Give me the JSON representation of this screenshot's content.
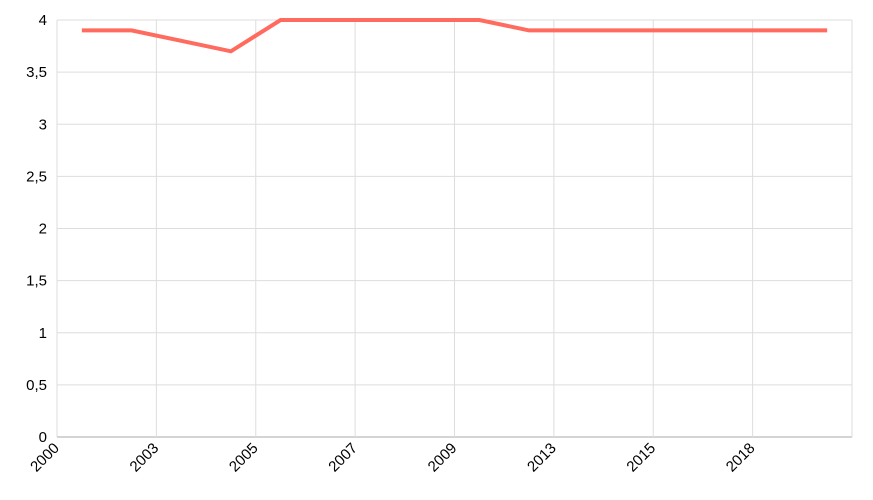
{
  "chart_data": {
    "type": "line",
    "title": "",
    "xlabel": "",
    "ylabel": "",
    "x_tick_labels": [
      "2000",
      "2003",
      "2005",
      "2007",
      "2009",
      "2013",
      "2015",
      "2018"
    ],
    "y_tick_labels": [
      "0",
      "0,5",
      "1",
      "1,5",
      "2",
      "2,5",
      "3",
      "3,5",
      "4"
    ],
    "ylim": [
      0,
      4
    ],
    "grid": true,
    "series": [
      {
        "color": "#ff6b5e",
        "values": [
          3.9,
          3.9,
          3.8,
          3.7,
          4.0,
          4.0,
          4.0,
          4.0,
          4.0,
          3.9,
          3.9,
          3.9,
          3.9,
          3.9,
          3.9,
          3.9
        ]
      }
    ]
  }
}
